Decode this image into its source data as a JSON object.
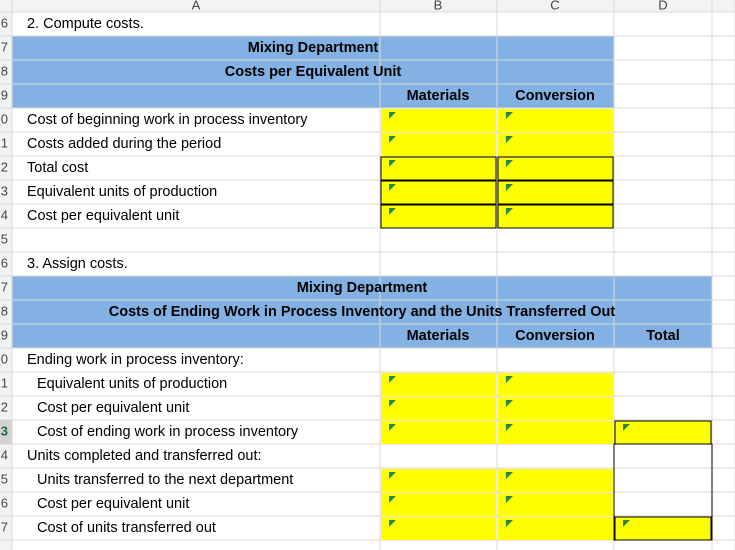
{
  "column_headers": [
    "A",
    "B",
    "C",
    "D"
  ],
  "row_numbers": [
    "6",
    "7",
    "8",
    "9",
    "0",
    "1",
    "2",
    "3",
    "4",
    "5",
    "6",
    "7",
    "8",
    "9",
    "0",
    "1",
    "2",
    "3",
    "4",
    "5",
    "6",
    "7"
  ],
  "compute": {
    "heading": "2. Compute costs.",
    "title": "Mixing Department",
    "subtitle": "Costs per Equivalent Unit",
    "columns": [
      "Materials",
      "Conversion"
    ],
    "rows": [
      "Cost of beginning work in process inventory",
      "Costs added during the period",
      "Total cost",
      "Equivalent units of production",
      "Cost per equivalent unit"
    ]
  },
  "assign": {
    "heading": "3. Assign costs.",
    "title": "Mixing Department",
    "subtitle": "Costs of Ending Work in Process Inventory and the Units Transferred Out",
    "columns": [
      "Materials",
      "Conversion",
      "Total"
    ],
    "rows": [
      "Ending work in process inventory:",
      "Equivalent units of production",
      "Cost per equivalent unit",
      "Cost of ending work in process inventory",
      "Units completed and transferred out:",
      "Units transferred to the next department",
      "Cost per equivalent unit",
      "Cost of units transferred out"
    ]
  }
}
